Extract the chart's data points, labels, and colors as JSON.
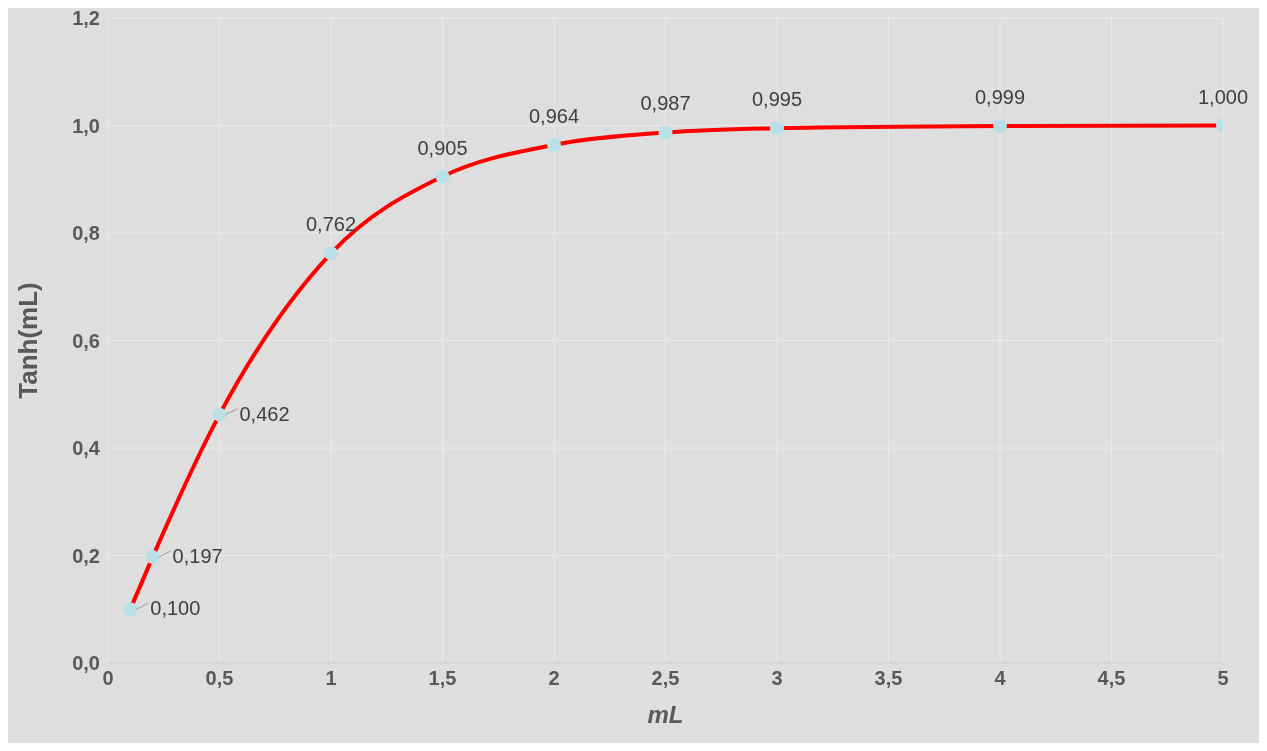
{
  "chart_data": {
    "type": "line",
    "xlabel": "mL",
    "ylabel": "Tanh(mL)",
    "x": [
      0.1,
      0.2,
      0.5,
      1,
      1.5,
      2,
      2.5,
      3,
      4,
      5
    ],
    "series": [
      {
        "color": "#ff0000",
        "values": [
          0.1,
          0.197,
          0.462,
          0.762,
          0.905,
          0.964,
          0.987,
          0.995,
          0.999,
          1.0
        ],
        "value_labels": [
          "0,100",
          "0,197",
          "0,462",
          "0,762",
          "0,905",
          "0,964",
          "0,987",
          "0,995",
          "0,999",
          "1,000"
        ]
      }
    ],
    "xlim": [
      0,
      5
    ],
    "xticks": [
      {
        "value": 0,
        "label": "0"
      },
      {
        "value": 0.5,
        "label": "0,5"
      },
      {
        "value": 1,
        "label": "1"
      },
      {
        "value": 1.5,
        "label": "1,5"
      },
      {
        "value": 2,
        "label": "2"
      },
      {
        "value": 2.5,
        "label": "2,5"
      },
      {
        "value": 3,
        "label": "3"
      },
      {
        "value": 3.5,
        "label": "3,5"
      },
      {
        "value": 4,
        "label": "4"
      },
      {
        "value": 4.5,
        "label": "4,5"
      },
      {
        "value": 5,
        "label": "5"
      }
    ],
    "ylim": [
      0,
      1.2
    ],
    "yticks": [
      {
        "value": 0,
        "label": "0,0"
      },
      {
        "value": 0.2,
        "label": "0,2"
      },
      {
        "value": 0.4,
        "label": "0,4"
      },
      {
        "value": 0.6,
        "label": "0,6"
      },
      {
        "value": 0.8,
        "label": "0,8"
      },
      {
        "value": 1,
        "label": "1,0"
      },
      {
        "value": 1.2,
        "label": "1,2"
      }
    ],
    "grid": true,
    "marker": "circle",
    "line_style": "solid"
  }
}
